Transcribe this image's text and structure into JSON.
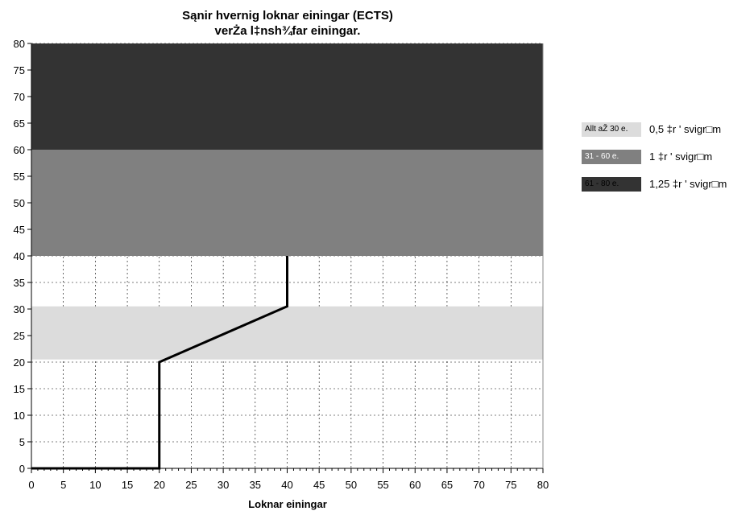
{
  "chart_data": {
    "type": "area",
    "title_line1": "Sąnir hvernig loknar einingar (ECTS)",
    "title_line2": "verŻa l‡nsh¾far einingar.",
    "xlabel": "Loknar einingar",
    "ylabel": "",
    "xlim": [
      0,
      80
    ],
    "ylim": [
      0,
      80
    ],
    "x_ticks": [
      0,
      5,
      10,
      15,
      20,
      25,
      30,
      35,
      40,
      45,
      50,
      55,
      60,
      65,
      70,
      75,
      80
    ],
    "y_ticks": [
      0,
      5,
      10,
      15,
      20,
      25,
      30,
      35,
      40,
      45,
      50,
      55,
      60,
      65,
      70,
      75,
      80
    ],
    "grid": true,
    "bands": [
      {
        "y_from": 20.5,
        "y_to": 30.5,
        "color": "#dcdcdc"
      },
      {
        "y_from": 40,
        "y_to": 60,
        "color": "#808080"
      },
      {
        "y_from": 60,
        "y_to": 80,
        "color": "#333333"
      }
    ],
    "series": [
      {
        "x": [
          0,
          20,
          20,
          40,
          40
        ],
        "y": [
          0,
          0,
          20,
          30.5,
          40
        ],
        "color": "#000000"
      }
    ],
    "legend_placement": "right"
  },
  "legend": [
    {
      "swatch_label": "Allt aŽ 30 e.",
      "text": "0,5 ‡r ' svigr□m",
      "color": "#dcdcdc",
      "text_color": "#000000"
    },
    {
      "swatch_label": "31 - 60 e.",
      "text": "1 ‡r ' svigr□m",
      "color": "#808080",
      "text_color": "#ffffff"
    },
    {
      "swatch_label": "61 - 80 e.",
      "text": "1,25 ‡r ' svigr□m",
      "color": "#333333",
      "text_color": "#000000"
    }
  ]
}
